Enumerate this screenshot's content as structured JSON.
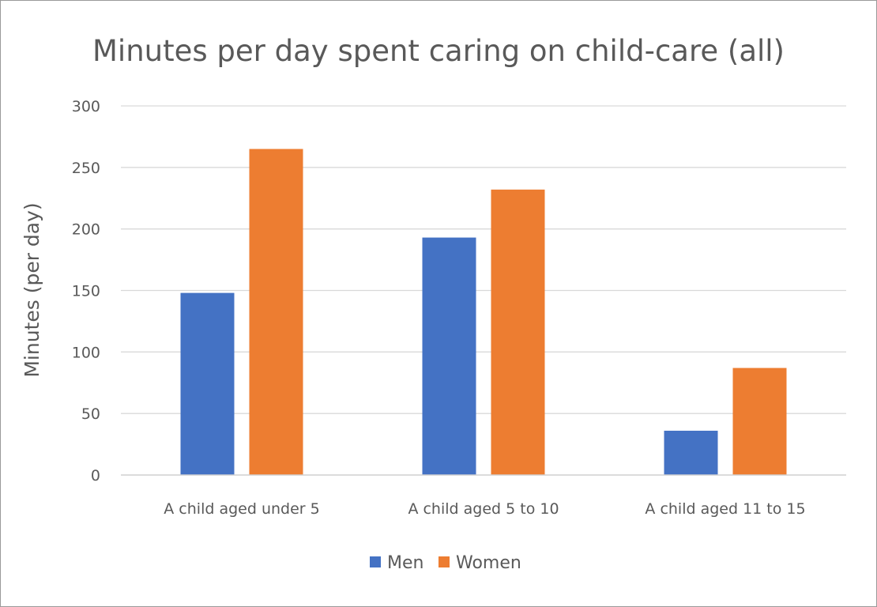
{
  "chart_data": {
    "type": "bar",
    "title": "Minutes per day spent caring on child-care (all)",
    "xlabel": "",
    "ylabel": "Minutes (per day)",
    "categories": [
      "A child aged under 5",
      "A child aged 5 to 10",
      "A child aged 11 to 15"
    ],
    "series": [
      {
        "name": "Men",
        "color": "#4472C4",
        "values": [
          148,
          193,
          36
        ]
      },
      {
        "name": "Women",
        "color": "#ED7D31",
        "values": [
          265,
          232,
          87
        ]
      }
    ],
    "ylim": [
      0,
      300
    ],
    "yticks": [
      0,
      50,
      100,
      150,
      200,
      250,
      300
    ],
    "grid": true,
    "legend_position": "bottom"
  }
}
